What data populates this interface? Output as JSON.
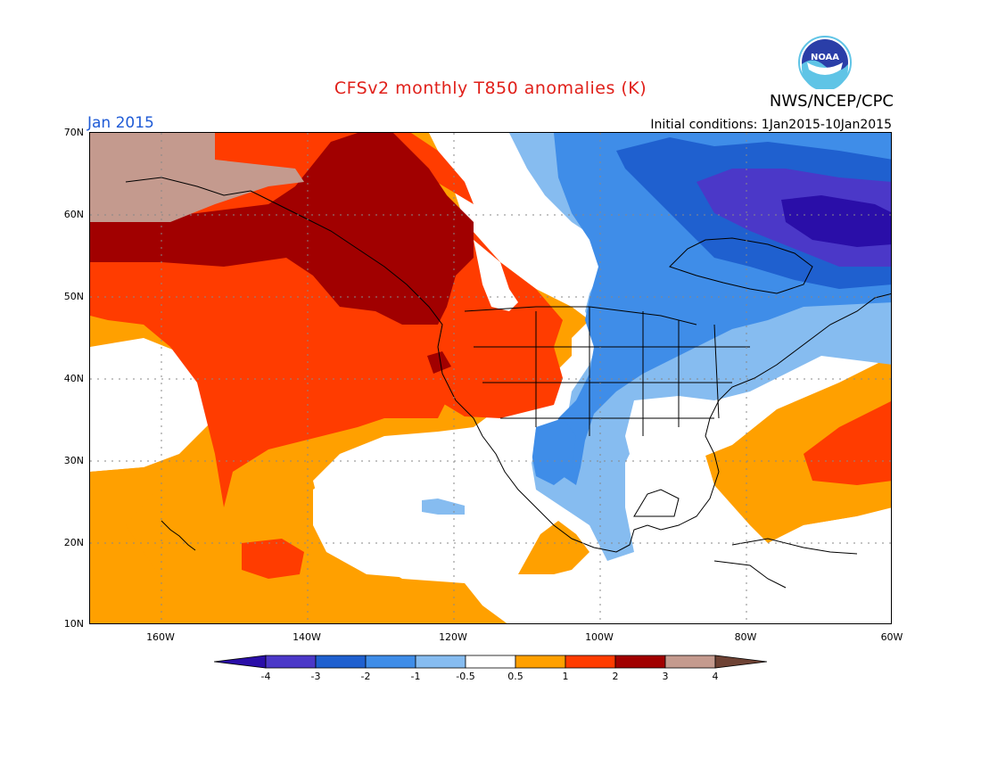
{
  "header": {
    "title": "CFSv2 monthly T850 anomalies (K)",
    "center": "NWS/NCEP/CPC",
    "logo_text": "NOAA",
    "month": "Jan 2015",
    "initial_conditions": "Initial conditions: 1Jan2015-10Jan2015"
  },
  "map": {
    "lat_labels": [
      "70N",
      "60N",
      "50N",
      "40N",
      "30N",
      "20N",
      "10N"
    ],
    "lon_labels": [
      "160W",
      "140W",
      "120W",
      "100W",
      "80W",
      "60W"
    ]
  },
  "legend": {
    "bins": [
      "-4",
      "-3",
      "-2",
      "-1",
      "-0.5",
      "0.5",
      "1",
      "2",
      "3",
      "4"
    ],
    "colors": [
      "#2a0ea8",
      "#4b38c8",
      "#1f60cf",
      "#3f8de8",
      "#86bcf0",
      "#ffffff",
      "#ffa000",
      "#ff3c00",
      "#a10000",
      "#c49a8e",
      "#6e4234"
    ]
  },
  "colors": {
    "title": "#e0201a",
    "month": "#1f5bd6"
  }
}
